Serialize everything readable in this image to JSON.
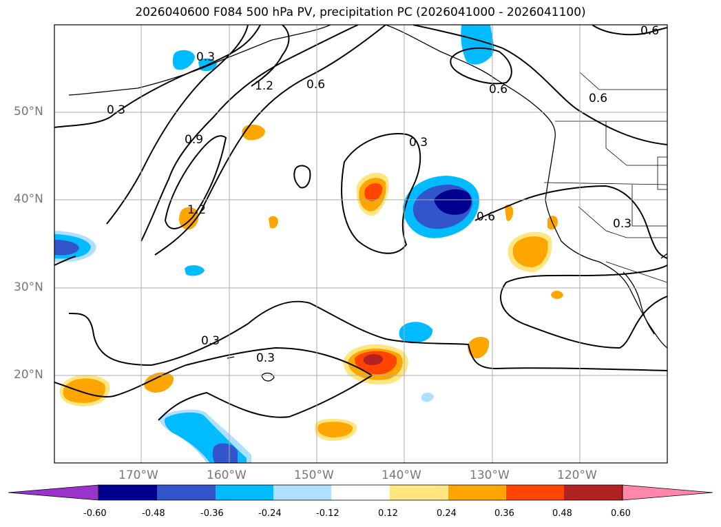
{
  "title": "2026040600 F084 500 hPa PV, precipitation PC (2026041000 - 2026041100)",
  "map": {
    "lat_ticks": [
      "50°N",
      "40°N",
      "30°N",
      "20°N"
    ],
    "lon_ticks": [
      "170°W",
      "160°W",
      "150°W",
      "140°W",
      "130°W",
      "120°W"
    ],
    "contour_labels": [
      "0.3",
      "0.3",
      "0.9",
      "1.2",
      "1.2",
      "0.6",
      "0.3",
      "0.6",
      "0.6",
      "0.6",
      "0.3",
      "0.3",
      "0.3",
      "0.6"
    ]
  },
  "colorbar": {
    "ticks": [
      "-0.60",
      "-0.48",
      "-0.36",
      "-0.24",
      "-0.12",
      "0.12",
      "0.24",
      "0.36",
      "0.48",
      "0.60"
    ],
    "colors": [
      "#9933cc",
      "#000090",
      "#3355cc",
      "#00bbff",
      "#b0e0ff",
      "#ffffff",
      "#ffe680",
      "#ffa500",
      "#ff4400",
      "#b22222",
      "#ff88aa"
    ]
  }
}
